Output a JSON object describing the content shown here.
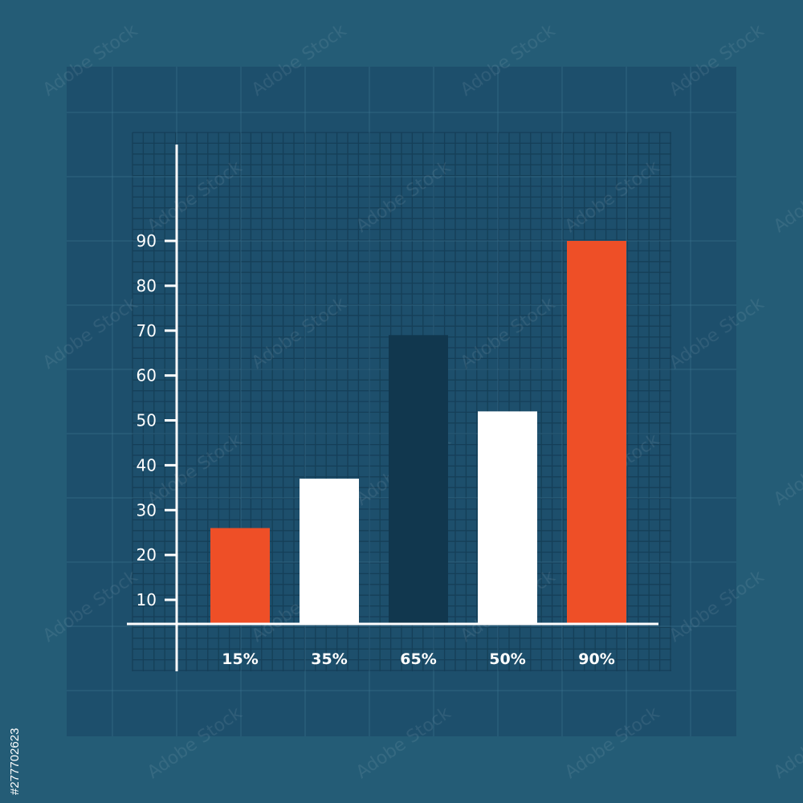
{
  "colors": {
    "background": "#245c76",
    "panel": "#1d4f6c",
    "fine_grid": "#153f58",
    "major_grid": "#3a7290",
    "axis": "#ffffff",
    "orange": "#ee4f27",
    "white": "#ffffff",
    "dark": "#11374e"
  },
  "image_id": "#277702623",
  "watermark": "Adobe Stock",
  "chart_data": {
    "type": "bar",
    "categories": [
      "15%",
      "35%",
      "65%",
      "50%",
      "90%"
    ],
    "values": [
      26,
      37,
      69,
      52,
      90
    ],
    "bar_colors": [
      "#ee4f27",
      "#ffffff",
      "#11374e",
      "#ffffff",
      "#ee4f27"
    ],
    "yticks": [
      "10",
      "20",
      "30",
      "40",
      "50",
      "60",
      "70",
      "80",
      "90"
    ],
    "ytick_values": [
      10,
      20,
      30,
      40,
      50,
      60,
      70,
      80,
      90
    ],
    "title": "",
    "xlabel": "",
    "ylabel": "",
    "grid": true,
    "legend": "none"
  }
}
